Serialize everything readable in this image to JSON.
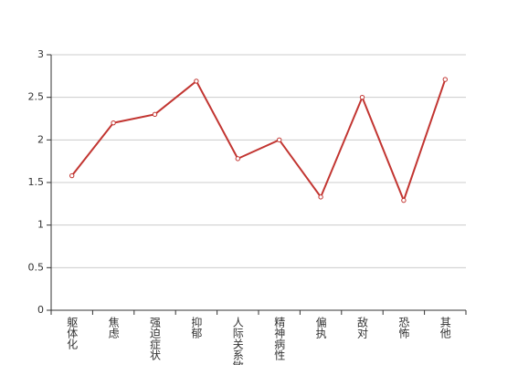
{
  "chart_data": {
    "type": "line",
    "categories": [
      "躯体化",
      "焦虑",
      "强迫症状",
      "抑郁",
      "人际关系敏感",
      "精神病性",
      "偏执",
      "敌对",
      "恐怖",
      "其他"
    ],
    "values": [
      1.58,
      2.2,
      2.3,
      2.69,
      1.78,
      2.0,
      1.33,
      2.5,
      1.29,
      2.71
    ],
    "color": "#c23531",
    "ylim": [
      0,
      3
    ],
    "yticks": [
      0,
      0.5,
      1,
      1.5,
      2,
      2.5,
      3
    ],
    "grid": true
  }
}
